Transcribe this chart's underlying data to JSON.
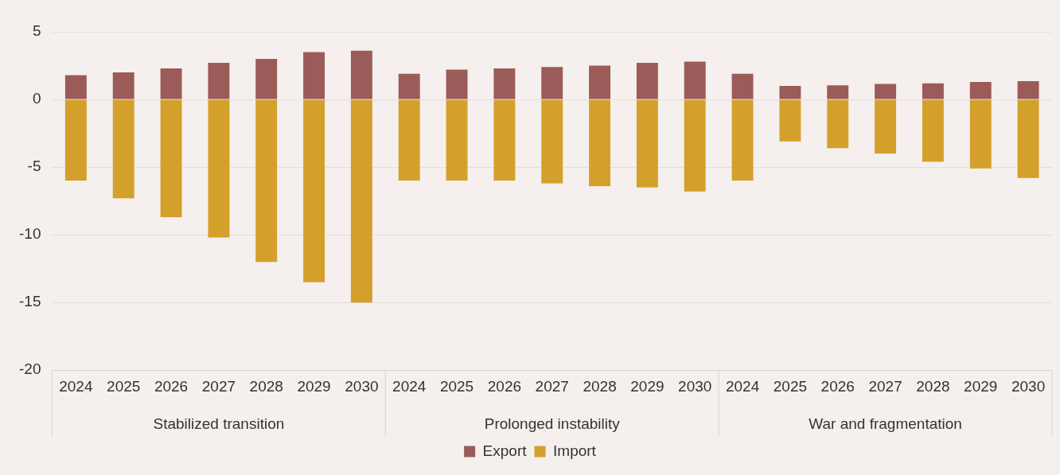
{
  "chart_data": {
    "type": "bar",
    "stacked": true,
    "categories": [
      "2024",
      "2025",
      "2026",
      "2027",
      "2028",
      "2029",
      "2030",
      "2024",
      "2025",
      "2026",
      "2027",
      "2028",
      "2029",
      "2030",
      "2024",
      "2025",
      "2026",
      "2027",
      "2028",
      "2029",
      "2030"
    ],
    "series": [
      {
        "name": "Export",
        "color": "#9b5b58",
        "values": [
          1.8,
          2.0,
          2.3,
          2.7,
          3.0,
          3.5,
          3.6,
          1.9,
          2.2,
          2.3,
          2.4,
          2.5,
          2.7,
          2.8,
          1.9,
          1.0,
          1.05,
          1.15,
          1.2,
          1.3,
          1.35
        ]
      },
      {
        "name": "Import",
        "color": "#d4a02c",
        "values": [
          -6.0,
          -7.3,
          -8.7,
          -10.2,
          -12.0,
          -13.5,
          -15.0,
          -6.0,
          -6.0,
          -6.0,
          -6.2,
          -6.4,
          -6.5,
          -6.8,
          -6.0,
          -3.1,
          -3.6,
          -4.0,
          -4.6,
          -5.1,
          -5.8
        ]
      }
    ],
    "annotations": [
      "Stabilized transition",
      "Prolonged instability",
      "War and fragmentation"
    ],
    "ylim": [
      -20,
      5
    ],
    "yticks": [
      -20,
      -15,
      -10,
      -5,
      0,
      5
    ],
    "grid": "y",
    "legend": "bottom"
  }
}
